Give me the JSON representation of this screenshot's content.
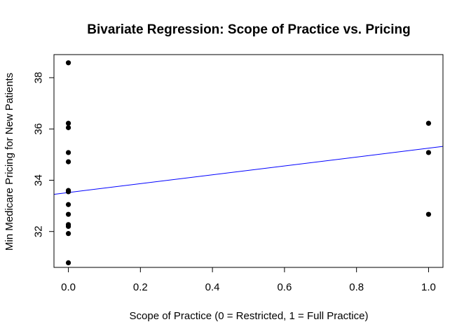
{
  "chart_data": {
    "type": "scatter",
    "title": "Bivariate Regression: Scope of Practice vs. Pricing",
    "xlabel": "Scope of Practice (0 = Restricted, 1 = Full Practice)",
    "ylabel": "Min Medicare Pricing for New Patients",
    "xlim": [
      -0.04,
      1.04
    ],
    "ylim": [
      30.6,
      38.9
    ],
    "x_ticks": [
      0.0,
      0.2,
      0.4,
      0.6,
      0.8,
      1.0
    ],
    "x_tick_labels": [
      "0.0",
      "0.2",
      "0.4",
      "0.6",
      "0.8",
      "1.0"
    ],
    "y_ticks": [
      32,
      34,
      36,
      38
    ],
    "y_tick_labels": [
      "32",
      "34",
      "36",
      "38"
    ],
    "grid": false,
    "points": [
      {
        "x": 0,
        "y": 38.58
      },
      {
        "x": 0,
        "y": 36.22
      },
      {
        "x": 0,
        "y": 36.05
      },
      {
        "x": 0,
        "y": 35.08
      },
      {
        "x": 0,
        "y": 34.72
      },
      {
        "x": 0,
        "y": 33.6
      },
      {
        "x": 0,
        "y": 33.55
      },
      {
        "x": 0,
        "y": 33.05
      },
      {
        "x": 0,
        "y": 32.67
      },
      {
        "x": 0,
        "y": 32.27
      },
      {
        "x": 0,
        "y": 32.2
      },
      {
        "x": 0,
        "y": 31.92
      },
      {
        "x": 0,
        "y": 30.78
      },
      {
        "x": 1,
        "y": 36.22
      },
      {
        "x": 1,
        "y": 35.08
      },
      {
        "x": 1,
        "y": 32.67
      }
    ],
    "regression_line": {
      "intercept": 33.52,
      "slope": 1.73,
      "color": "#0000ff"
    },
    "point_color": "#000000"
  }
}
